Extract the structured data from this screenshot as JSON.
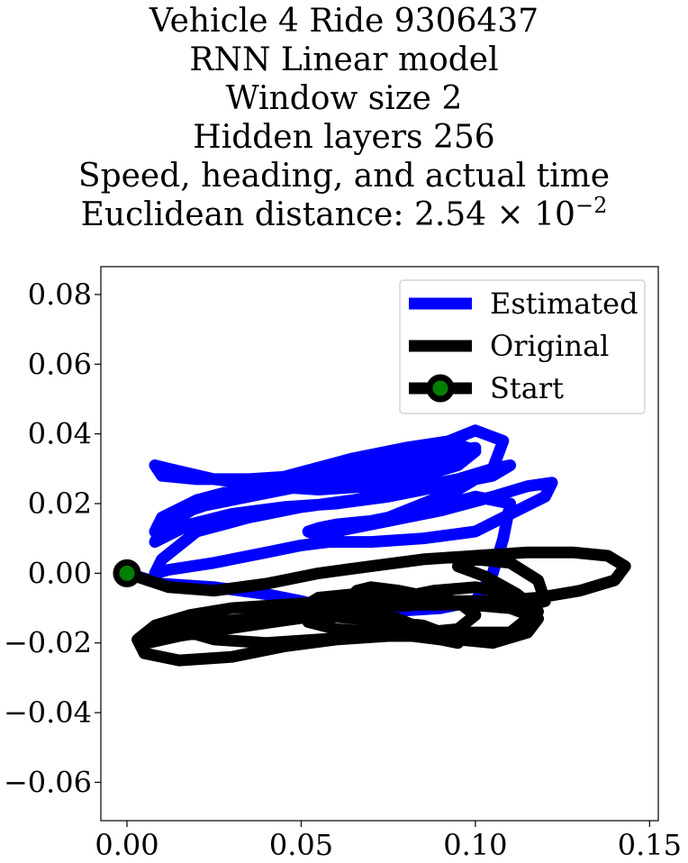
{
  "chart_data": {
    "type": "line",
    "title_lines": [
      "Vehicle 4 Ride 9306437",
      "RNN Linear model",
      "Window size 2",
      "Hidden layers 256",
      "Speed, heading, and actual time"
    ],
    "metric": {
      "label": "Euclidean distance: ",
      "mantissa": "2.54",
      "base": "10",
      "exponent": "−2"
    },
    "xlabel": "",
    "ylabel": "",
    "xlim": [
      -0.0075,
      0.1525
    ],
    "ylim": [
      -0.071,
      0.088
    ],
    "x_ticks": [
      {
        "value": 0.0,
        "label": "0.00"
      },
      {
        "value": 0.05,
        "label": "0.05"
      },
      {
        "value": 0.1,
        "label": "0.10"
      },
      {
        "value": 0.15,
        "label": "0.15"
      }
    ],
    "y_ticks": [
      {
        "value": 0.08,
        "label": "0.08"
      },
      {
        "value": 0.06,
        "label": "0.06"
      },
      {
        "value": 0.04,
        "label": "0.04"
      },
      {
        "value": 0.02,
        "label": "0.02"
      },
      {
        "value": 0.0,
        "label": "0.00"
      },
      {
        "value": -0.02,
        "label": "−0.02"
      },
      {
        "value": -0.04,
        "label": "−0.04"
      },
      {
        "value": -0.06,
        "label": "−0.06"
      }
    ],
    "grid": false,
    "legend_position": "top-right",
    "series": [
      {
        "name": "Estimated",
        "color": "#0000ff",
        "x": [
          0.0,
          0.01,
          0.025,
          0.04,
          0.05,
          0.054,
          0.06,
          0.075,
          0.09,
          0.1,
          0.105,
          0.108,
          0.11,
          0.1,
          0.085,
          0.07,
          0.06,
          0.055,
          0.052,
          0.054,
          0.06,
          0.075,
          0.09,
          0.105,
          0.115,
          0.122,
          0.12,
          0.11,
          0.1,
          0.085,
          0.07,
          0.058,
          0.05,
          0.04,
          0.025,
          0.012,
          0.008,
          0.01,
          0.02,
          0.035,
          0.05,
          0.065,
          0.08,
          0.095,
          0.105,
          0.11,
          0.105,
          0.09,
          0.075,
          0.06,
          0.045,
          0.03,
          0.018,
          0.012,
          0.008,
          0.01,
          0.02,
          0.035,
          0.05,
          0.065,
          0.08,
          0.092,
          0.1,
          0.092,
          0.08,
          0.065,
          0.05,
          0.035,
          0.02,
          0.01,
          0.008,
          0.012,
          0.025,
          0.04,
          0.055,
          0.07,
          0.085,
          0.095,
          0.1,
          0.093,
          0.08,
          0.065,
          0.05,
          0.035,
          0.02,
          0.01,
          0.008,
          0.015,
          0.03,
          0.045,
          0.06,
          0.075,
          0.09,
          0.1,
          0.108,
          0.105,
          0.095,
          0.085,
          0.075,
          0.07,
          0.072
        ],
        "y": [
          0.0,
          -0.003,
          -0.004,
          -0.006,
          -0.008,
          -0.009,
          -0.01,
          -0.011,
          -0.01,
          -0.008,
          0.0,
          0.01,
          0.02,
          0.022,
          0.018,
          0.015,
          0.014,
          0.013,
          0.012,
          0.011,
          0.012,
          0.015,
          0.018,
          0.022,
          0.025,
          0.026,
          0.022,
          0.017,
          0.012,
          0.01,
          0.009,
          0.009,
          0.008,
          0.006,
          0.003,
          0.001,
          0.0,
          0.004,
          0.012,
          0.016,
          0.019,
          0.021,
          0.024,
          0.027,
          0.03,
          0.031,
          0.028,
          0.025,
          0.022,
          0.02,
          0.019,
          0.017,
          0.014,
          0.011,
          0.009,
          0.013,
          0.019,
          0.022,
          0.025,
          0.027,
          0.029,
          0.032,
          0.036,
          0.035,
          0.031,
          0.029,
          0.028,
          0.027,
          0.027,
          0.028,
          0.031,
          0.03,
          0.027,
          0.025,
          0.024,
          0.025,
          0.028,
          0.031,
          0.035,
          0.038,
          0.036,
          0.033,
          0.029,
          0.025,
          0.021,
          0.016,
          0.012,
          0.017,
          0.022,
          0.026,
          0.029,
          0.033,
          0.037,
          0.041,
          0.038,
          0.03,
          0.024,
          0.02,
          0.016,
          0.014,
          0.015
        ]
      },
      {
        "name": "Original",
        "color": "#000000",
        "x": [
          0.0,
          0.012,
          0.025,
          0.04,
          0.055,
          0.07,
          0.085,
          0.1,
          0.115,
          0.128,
          0.138,
          0.143,
          0.14,
          0.13,
          0.118,
          0.105,
          0.09,
          0.075,
          0.06,
          0.045,
          0.03,
          0.018,
          0.008,
          0.003,
          0.005,
          0.015,
          0.03,
          0.045,
          0.06,
          0.075,
          0.09,
          0.105,
          0.115,
          0.118,
          0.112,
          0.1,
          0.088,
          0.078,
          0.07,
          0.06,
          0.05,
          0.04,
          0.03,
          0.022,
          0.018,
          0.025,
          0.04,
          0.055,
          0.07,
          0.085,
          0.1,
          0.11,
          0.115,
          0.112,
          0.103,
          0.095,
          0.1,
          0.11,
          0.118,
          0.12,
          0.112,
          0.1,
          0.088,
          0.076,
          0.065,
          0.055,
          0.05,
          0.052,
          0.06,
          0.072,
          0.082,
          0.09,
          0.095,
          0.093,
          0.085,
          0.075,
          0.065,
          0.055,
          0.045,
          0.035,
          0.025,
          0.015,
          0.007,
          0.004,
          0.006,
          0.015,
          0.028,
          0.042,
          0.056,
          0.07,
          0.084,
          0.098,
          0.11,
          0.118,
          0.115,
          0.105,
          0.095,
          0.085,
          0.075,
          0.068,
          0.064,
          0.066,
          0.07,
          0.078,
          0.088,
          0.096,
          0.1,
          0.095,
          0.085,
          0.073,
          0.063,
          0.058,
          0.06
        ],
        "y": [
          0.0,
          -0.004,
          -0.005,
          -0.003,
          0.0,
          0.002,
          0.004,
          0.005,
          0.006,
          0.006,
          0.005,
          0.002,
          -0.002,
          -0.005,
          -0.007,
          -0.008,
          -0.008,
          -0.008,
          -0.008,
          -0.009,
          -0.01,
          -0.012,
          -0.015,
          -0.019,
          -0.023,
          -0.025,
          -0.024,
          -0.021,
          -0.019,
          -0.018,
          -0.018,
          -0.018,
          -0.016,
          -0.011,
          -0.006,
          -0.004,
          -0.005,
          -0.007,
          -0.009,
          -0.011,
          -0.012,
          -0.013,
          -0.014,
          -0.015,
          -0.017,
          -0.019,
          -0.02,
          -0.019,
          -0.018,
          -0.017,
          -0.017,
          -0.017,
          -0.013,
          -0.006,
          -0.001,
          0.002,
          0.004,
          0.003,
          -0.002,
          -0.008,
          -0.01,
          -0.009,
          -0.007,
          -0.006,
          -0.006,
          -0.007,
          -0.01,
          -0.014,
          -0.016,
          -0.017,
          -0.018,
          -0.019,
          -0.02,
          -0.018,
          -0.015,
          -0.014,
          -0.013,
          -0.012,
          -0.012,
          -0.013,
          -0.014,
          -0.016,
          -0.018,
          -0.02,
          -0.02,
          -0.018,
          -0.016,
          -0.014,
          -0.012,
          -0.01,
          -0.009,
          -0.009,
          -0.01,
          -0.013,
          -0.017,
          -0.02,
          -0.019,
          -0.016,
          -0.012,
          -0.009,
          -0.007,
          -0.005,
          -0.004,
          -0.005,
          -0.007,
          -0.009,
          -0.012,
          -0.016,
          -0.017,
          -0.015,
          -0.012,
          -0.009,
          -0.007
        ]
      },
      {
        "name": "Start",
        "color": "#000000",
        "marker_color": "#008000",
        "x": [
          0.0
        ],
        "y": [
          0.0
        ]
      }
    ]
  }
}
